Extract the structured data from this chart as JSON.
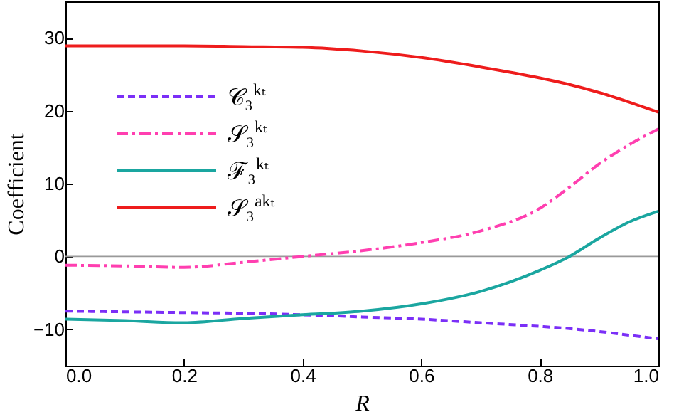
{
  "chart_data": {
    "type": "line",
    "xlabel": "R",
    "ylabel": "Coefficient",
    "x": [
      0,
      0.1,
      0.2,
      0.3,
      0.4,
      0.5,
      0.6,
      0.7,
      0.8,
      0.85,
      0.9,
      0.95,
      1.0
    ],
    "series": [
      {
        "name": "𝒞₃$^{kₜ}$",
        "color": "#7b2ff7",
        "line_style": "dashed",
        "values": [
          -7.5,
          -7.6,
          -7.7,
          -7.8,
          -8.0,
          -8.3,
          -8.6,
          -9.1,
          -9.6,
          -9.9,
          -10.3,
          -10.8,
          -11.3
        ]
      },
      {
        "name": "𝒮₃$^{kₜ}$",
        "color": "#ff3fb0",
        "line_style": "dashdot",
        "values": [
          -1.2,
          -1.3,
          -1.5,
          -0.8,
          0,
          0.8,
          1.9,
          3.5,
          6.6,
          9.5,
          12.7,
          15.3,
          17.5
        ]
      },
      {
        "name": "ℱ₃$^{kₜ}$",
        "color": "#1aa6a0",
        "line_style": "solid",
        "values": [
          -8.6,
          -8.8,
          -9.1,
          -8.5,
          -8.0,
          -7.5,
          -6.5,
          -4.8,
          -1.9,
          0,
          2.5,
          4.7,
          6.2
        ]
      },
      {
        "name": "𝒮₃$^{akₜ}$",
        "color": "#ee1c1c",
        "line_style": "solid",
        "values": [
          28.9,
          28.9,
          28.9,
          28.8,
          28.7,
          28.2,
          27.3,
          26.0,
          24.5,
          23.6,
          22.5,
          21.2,
          19.8
        ]
      }
    ],
    "xlim": [
      0,
      1
    ],
    "ylim": [
      -15,
      35
    ],
    "xticks": [
      {
        "value": 0,
        "label": "0.0"
      },
      {
        "value": 0.2,
        "label": "0.2"
      },
      {
        "value": 0.4,
        "label": "0.4"
      },
      {
        "value": 0.6,
        "label": "0.6"
      },
      {
        "value": 0.8,
        "label": "0.8"
      },
      {
        "value": 1,
        "label": "1.0"
      }
    ],
    "yticks": [
      -10,
      0,
      10,
      20,
      30
    ],
    "ref_lines": [
      {
        "axis": "y",
        "value": 0,
        "color": "#999999"
      }
    ],
    "legend": "left",
    "grid": false,
    "marker": "none"
  }
}
